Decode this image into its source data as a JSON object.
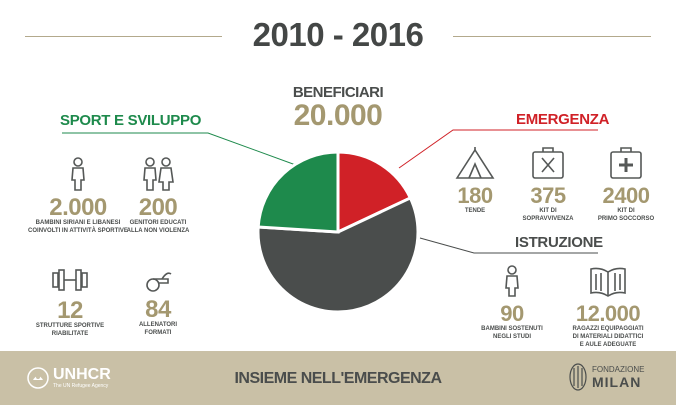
{
  "header": {
    "title": "2010 - 2016"
  },
  "beneficiari": {
    "label": "BENEFICIARI",
    "value": "20.000"
  },
  "sport": {
    "title": "SPORT E SVILUPPO",
    "color": "#1e8a4c",
    "items": [
      {
        "icon": "child-icon",
        "value": "2.000",
        "caption_1": "BAMBINI SIRIANI E LIBANESI",
        "caption_2": "COINVOLTI IN ATTIVITÀ SPORTIVE"
      },
      {
        "icon": "parents-icon",
        "value": "200",
        "caption_1": "GENITORI EDUCATI",
        "caption_2": "ALLA NON VIOLENZA"
      },
      {
        "icon": "dumbbell-icon",
        "value": "12",
        "caption_1": "STRUTTURE SPORTIVE",
        "caption_2": "RIABILITATE"
      },
      {
        "icon": "whistle-icon",
        "value": "84",
        "caption_1": "ALLENATORI",
        "caption_2": "FORMATI"
      }
    ]
  },
  "emergenza": {
    "title": "EMERGENZA",
    "color": "#d02127",
    "items": [
      {
        "icon": "tent-icon",
        "value": "180",
        "caption_1": "TENDE",
        "caption_2": ""
      },
      {
        "icon": "survival-kit-icon",
        "value": "375",
        "caption_1": "KIT DI",
        "caption_2": "SOPRAVVIVENZA"
      },
      {
        "icon": "first-aid-kit-icon",
        "value": "2400",
        "caption_1": "KIT DI",
        "caption_2": "PRIMO SOCCORSO"
      }
    ]
  },
  "istruzione": {
    "title": "ISTRUZIONE",
    "color": "#4a4d4c",
    "items": [
      {
        "icon": "student-icon",
        "value": "90",
        "caption_1": "BAMBINI SOSTENUTI",
        "caption_2": "NEGLI STUDI",
        "caption_3": ""
      },
      {
        "icon": "book-icon",
        "value": "12.000",
        "caption_1": "RAGAZZI EQUIPAGGIATI",
        "caption_2": "DI MATERIALI DIDATTICI",
        "caption_3": "E AULE ADEGUATE"
      }
    ]
  },
  "pie": {
    "segments": [
      {
        "name": "EMERGENZA",
        "fraction": 0.18,
        "color": "#d02127"
      },
      {
        "name": "ISTRUZIONE",
        "fraction": 0.58,
        "color": "#4a4d4c"
      },
      {
        "name": "SPORT E SVILUPPO",
        "fraction": 0.24,
        "color": "#1e8a4c"
      }
    ]
  },
  "footer": {
    "left_logo": "UNHCR",
    "left_logo_sub": "The UN Refugee Agency",
    "tagline": "INSIEME NELL'EMERGENZA",
    "right_logo_1": "FONDAZIONE",
    "right_logo_2": "MILAN"
  }
}
